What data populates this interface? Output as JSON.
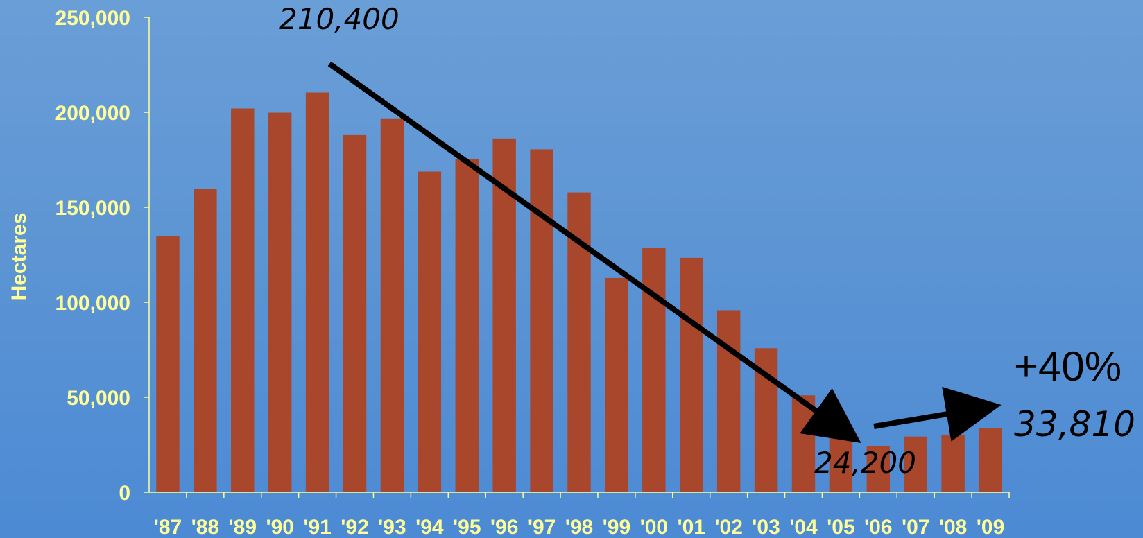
{
  "chart_data": {
    "type": "bar",
    "title": "",
    "xlabel": "",
    "ylabel": "Hectares",
    "ylim": [
      0,
      250000
    ],
    "yticks": [
      0,
      50000,
      100000,
      150000,
      200000,
      250000
    ],
    "ytick_labels": [
      "0",
      "50,000",
      "100,000",
      "150,000",
      "200,000",
      "250,000"
    ],
    "categories": [
      "'87",
      "'88",
      "'89",
      "'90",
      "'91",
      "'92",
      "'93",
      "'94",
      "'95",
      "'96",
      "'97",
      "'98",
      "'99",
      "'00",
      "'01",
      "'02",
      "'03",
      "'04",
      "'05",
      "'06",
      "'07",
      "'08",
      "'09"
    ],
    "values": [
      135000,
      159500,
      202000,
      199800,
      210400,
      188000,
      196800,
      168800,
      175400,
      186200,
      180500,
      157800,
      112800,
      128500,
      123400,
      95800,
      75800,
      51000,
      34000,
      24200,
      29300,
      30300,
      33810
    ],
    "grid": false,
    "legend": "none",
    "colors": {
      "bar": "#a8472b",
      "axis": "#ffff99",
      "tick_text": "#ffff99",
      "annotation": "#000000"
    },
    "annotations": {
      "peak_value": "210,400",
      "low_value": "24,200",
      "latest_value": "33,810",
      "change": "+40%"
    }
  }
}
